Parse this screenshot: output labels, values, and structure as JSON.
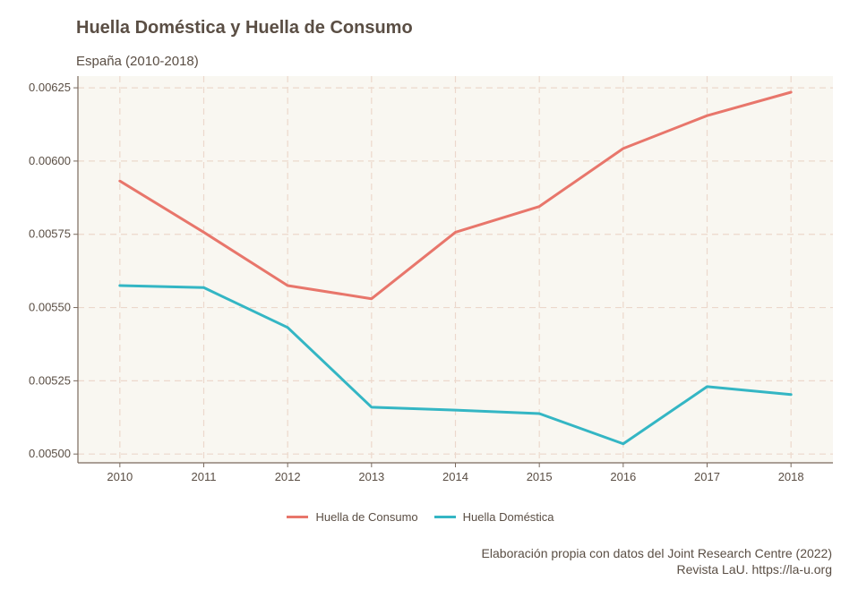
{
  "chart_data": {
    "type": "line",
    "title": "Huella Doméstica y Huella de Consumo",
    "subtitle": "España (2010-2018)",
    "x": [
      2010,
      2011,
      2012,
      2013,
      2014,
      2015,
      2016,
      2017,
      2018
    ],
    "y_ticks": [
      "0.00500",
      "0.00525",
      "0.00550",
      "0.00575",
      "0.00600",
      "0.00625"
    ],
    "ylim": [
      0.00497,
      0.00629
    ],
    "grid": true,
    "legend_position": "bottom",
    "series": [
      {
        "name": "Huella de Consumo",
        "color": "#e8766b",
        "values": [
          0.005932,
          0.005757,
          0.005575,
          0.00553,
          0.005757,
          0.005845,
          0.006043,
          0.006155,
          0.006235
        ]
      },
      {
        "name": "Huella Doméstica",
        "color": "#34b6c4",
        "values": [
          0.005575,
          0.005568,
          0.005432,
          0.00516,
          0.00515,
          0.005138,
          0.005035,
          0.00523,
          0.005203
        ]
      }
    ],
    "caption": [
      "Elaboración propia con datos del Joint Research Centre (2022)",
      "Revista LaU. https://la-u.org"
    ]
  }
}
